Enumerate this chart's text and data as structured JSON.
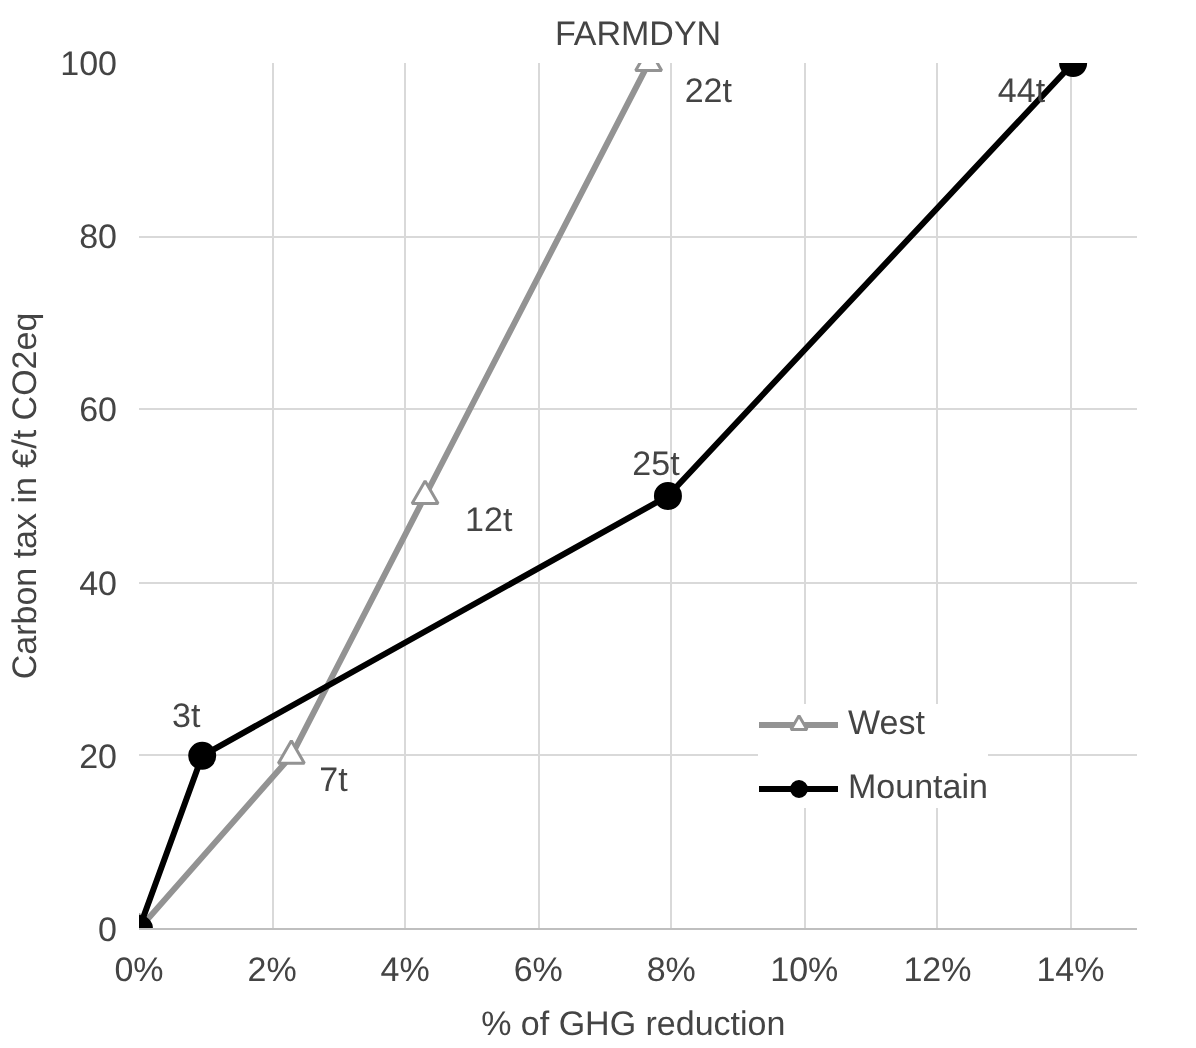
{
  "chart_data": {
    "type": "line",
    "title": "FARMDYN",
    "xlabel": "% of GHG  reduction",
    "ylabel": "Carbon tax in €/t CO2eq",
    "series": [
      {
        "name": "West",
        "color": "#939393",
        "marker": "triangle",
        "x": [
          0,
          2.29,
          4.3,
          7.66
        ],
        "values": [
          0,
          20,
          50,
          100
        ]
      },
      {
        "name": "Mountain",
        "color": "#000000",
        "marker": "circle",
        "x": [
          0,
          0.95,
          7.95,
          14.04
        ],
        "values": [
          0,
          20,
          50,
          100
        ]
      }
    ],
    "xlim": [
      0,
      15
    ],
    "ylim": [
      0,
      100
    ],
    "xticks": [
      {
        "value": 0,
        "label": "0%"
      },
      {
        "value": 2,
        "label": "2%"
      },
      {
        "value": 4,
        "label": "4%"
      },
      {
        "value": 6,
        "label": "6%"
      },
      {
        "value": 8,
        "label": "8%"
      },
      {
        "value": 10,
        "label": "10%"
      },
      {
        "value": 12,
        "label": "12%"
      },
      {
        "value": 14,
        "label": "14%"
      }
    ],
    "yticks": [
      0,
      20,
      40,
      60,
      80,
      100
    ],
    "grid": true,
    "legend": "right",
    "line_style": "solid",
    "annotations": [
      {
        "text": "3t",
        "x": 0.95,
        "y": 20
      },
      {
        "text": "7t",
        "x": 2.29,
        "y": 20
      },
      {
        "text": "12t",
        "x": 4.3,
        "y": 50
      },
      {
        "text": "25t",
        "x": 7.95,
        "y": 50
      },
      {
        "text": "22t",
        "x": 7.66,
        "y": 100
      },
      {
        "text": "44t",
        "x": 14.04,
        "y": 100
      }
    ]
  }
}
